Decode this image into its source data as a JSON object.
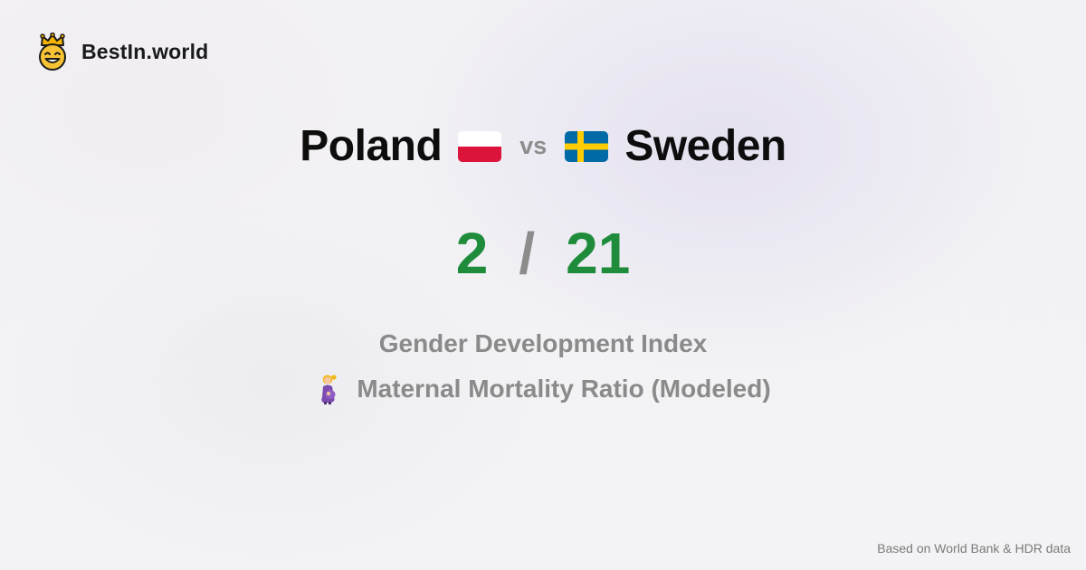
{
  "brand": {
    "name": "BestIn.world",
    "logo_icon": "crowned-smiley-icon"
  },
  "comparison": {
    "left_country": "Poland",
    "left_flag": "poland-flag-icon",
    "vs_label": "vs",
    "right_country": "Sweden",
    "right_flag": "sweden-flag-icon"
  },
  "score": {
    "left": "2",
    "separator": "/",
    "right": "21",
    "color": "#1e8c3a"
  },
  "metrics": [
    {
      "label": "Gender Development Index",
      "icon": ""
    },
    {
      "label": "Maternal Mortality Ratio (Modeled)",
      "icon": "pregnant-woman-icon"
    }
  ],
  "footer": {
    "source_note": "Based on World Bank & HDR data"
  }
}
